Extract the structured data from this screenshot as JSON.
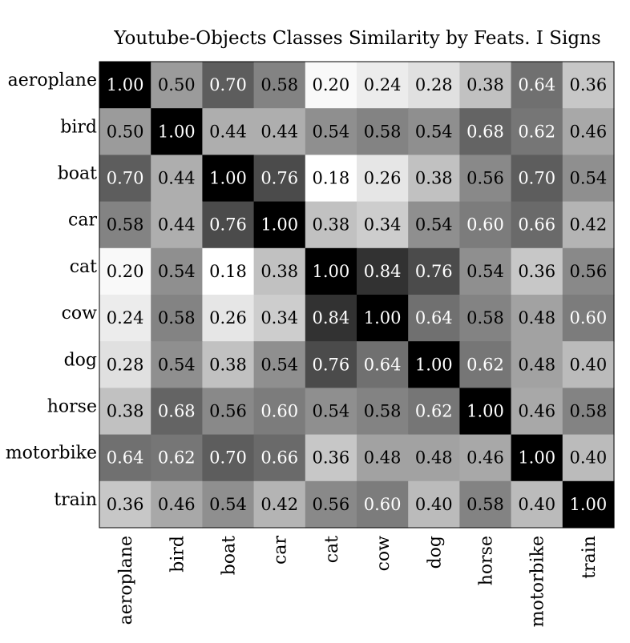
{
  "chart_data": {
    "type": "heatmap",
    "title": "Youtube-Objects Classes Similarity by Feats. I Signs",
    "xlabel": "",
    "ylabel": "",
    "categories_x": [
      "aeroplane",
      "bird",
      "boat",
      "car",
      "cat",
      "cow",
      "dog",
      "horse",
      "motorbike",
      "train"
    ],
    "categories_y": [
      "aeroplane",
      "bird",
      "boat",
      "car",
      "cat",
      "cow",
      "dog",
      "horse",
      "motorbike",
      "train"
    ],
    "value_range": [
      0.18,
      1.0
    ],
    "colormap": "white-to-black",
    "colors": {
      "low": "#ffffff",
      "high": "#000000",
      "text_dark": "#000000",
      "text_light": "#ffffff"
    },
    "values": [
      [
        1.0,
        0.5,
        0.7,
        0.58,
        0.2,
        0.24,
        0.28,
        0.38,
        0.64,
        0.36
      ],
      [
        0.5,
        1.0,
        0.44,
        0.44,
        0.54,
        0.58,
        0.54,
        0.68,
        0.62,
        0.46
      ],
      [
        0.7,
        0.44,
        1.0,
        0.76,
        0.18,
        0.26,
        0.38,
        0.56,
        0.7,
        0.54
      ],
      [
        0.58,
        0.44,
        0.76,
        1.0,
        0.38,
        0.34,
        0.54,
        0.6,
        0.66,
        0.42
      ],
      [
        0.2,
        0.54,
        0.18,
        0.38,
        1.0,
        0.84,
        0.76,
        0.54,
        0.36,
        0.56
      ],
      [
        0.24,
        0.58,
        0.26,
        0.34,
        0.84,
        1.0,
        0.64,
        0.58,
        0.48,
        0.6
      ],
      [
        0.28,
        0.54,
        0.38,
        0.54,
        0.76,
        0.64,
        1.0,
        0.62,
        0.48,
        0.4
      ],
      [
        0.38,
        0.68,
        0.56,
        0.6,
        0.54,
        0.58,
        0.62,
        1.0,
        0.46,
        0.58
      ],
      [
        0.64,
        0.62,
        0.7,
        0.66,
        0.36,
        0.48,
        0.48,
        0.46,
        1.0,
        0.4
      ],
      [
        0.36,
        0.46,
        0.54,
        0.42,
        0.56,
        0.6,
        0.4,
        0.58,
        0.4,
        1.0
      ]
    ]
  }
}
